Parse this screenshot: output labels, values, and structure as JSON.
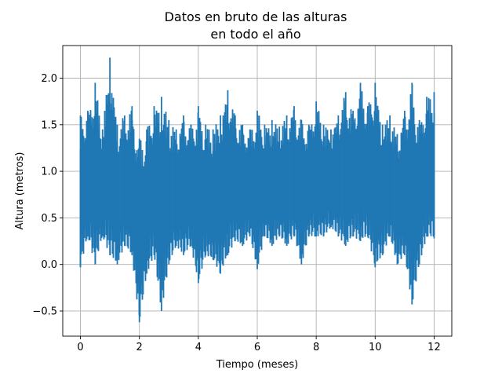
{
  "chart_data": {
    "type": "line",
    "title_line1": "Datos en bruto de las alturas",
    "title_line2": "en todo el año",
    "xlabel": "Tiempo (meses)",
    "ylabel": "Altura (metros)",
    "xlim": [
      -0.6,
      12.6
    ],
    "ylim": [
      -0.77,
      2.35
    ],
    "xticks": [
      0,
      2,
      4,
      6,
      8,
      10,
      12
    ],
    "yticks": [
      -0.5,
      0.0,
      0.5,
      1.0,
      1.5,
      2.0
    ],
    "xtick_labels": [
      "0",
      "2",
      "4",
      "6",
      "8",
      "10",
      "12"
    ],
    "ytick_labels": [
      "−0.5",
      "0.0",
      "0.5",
      "1.0",
      "1.5",
      "2.0"
    ],
    "grid": true,
    "series": [
      {
        "color": "#1f77b4",
        "x": [
          0.0,
          0.25,
          0.5,
          0.75,
          1.0,
          1.25,
          1.5,
          1.75,
          2.0,
          2.25,
          2.5,
          2.75,
          3.0,
          3.25,
          3.5,
          3.75,
          4.0,
          4.25,
          4.5,
          4.75,
          5.0,
          5.25,
          5.5,
          5.75,
          6.0,
          6.25,
          6.5,
          6.75,
          7.0,
          7.25,
          7.5,
          7.75,
          8.0,
          8.25,
          8.5,
          8.75,
          9.0,
          9.25,
          9.5,
          9.75,
          10.0,
          10.25,
          10.5,
          10.75,
          11.0,
          11.25,
          11.5,
          11.75,
          12.0
        ],
        "y_min": [
          -0.03,
          0.3,
          0.0,
          0.3,
          0.1,
          0.0,
          0.2,
          0.1,
          -0.62,
          -0.1,
          0.1,
          -0.5,
          0.0,
          0.2,
          0.1,
          0.2,
          -0.2,
          0.1,
          0.05,
          -0.1,
          0.1,
          0.25,
          0.2,
          0.3,
          -0.05,
          0.3,
          0.2,
          0.3,
          0.2,
          0.3,
          0.0,
          0.3,
          0.3,
          0.3,
          0.4,
          0.3,
          0.2,
          0.3,
          0.25,
          0.3,
          -0.03,
          0.1,
          0.3,
          0.0,
          0.1,
          -0.43,
          0.0,
          0.3,
          0.28
        ],
        "y_max": [
          1.6,
          1.65,
          1.95,
          1.45,
          2.22,
          1.5,
          1.6,
          1.7,
          1.35,
          1.45,
          1.7,
          1.8,
          1.55,
          1.45,
          1.6,
          1.5,
          1.7,
          1.5,
          1.45,
          1.6,
          1.87,
          1.6,
          1.5,
          1.45,
          1.65,
          1.5,
          1.55,
          1.48,
          1.6,
          1.7,
          1.55,
          1.5,
          1.75,
          1.5,
          1.45,
          1.6,
          1.85,
          1.65,
          1.95,
          1.7,
          1.95,
          1.5,
          1.6,
          1.4,
          1.65,
          1.95,
          1.55,
          1.8,
          1.85
        ]
      }
    ]
  }
}
